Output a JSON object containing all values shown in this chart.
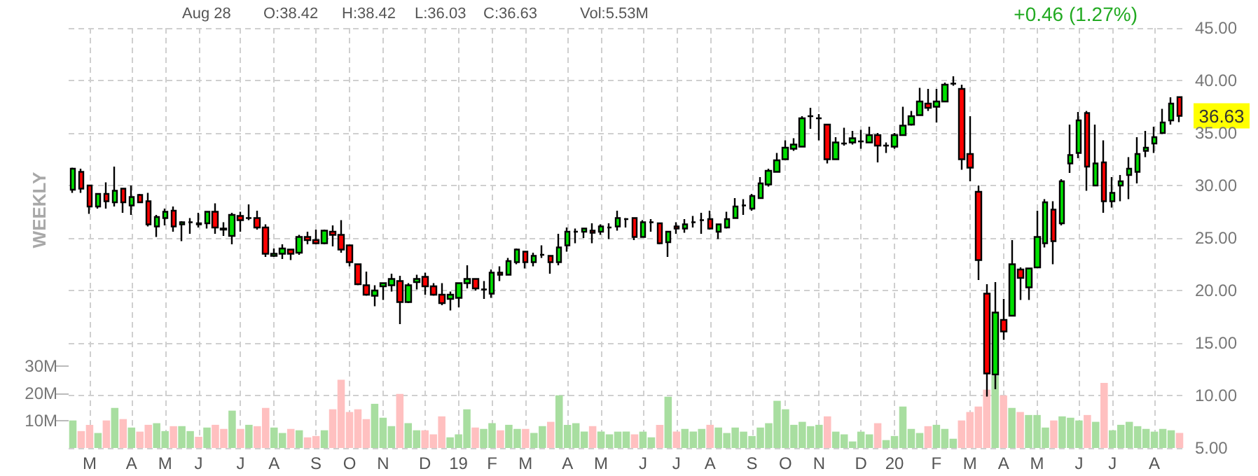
{
  "chart_data": {
    "type": "candlestick",
    "annotations": [
      "Aug 28",
      "O:38.42",
      "H:38.42",
      "L:36.03",
      "C:36.63",
      "Vol:5.53M",
      "+0.46 (1.27%)",
      "36.63",
      "WEEKLY"
    ],
    "categories": [
      null,
      null,
      "M",
      null,
      null,
      null,
      null,
      "A",
      null,
      null,
      null,
      "M",
      null,
      null,
      null,
      "J",
      null,
      null,
      null,
      null,
      "J",
      null,
      null,
      null,
      "A",
      null,
      null,
      null,
      null,
      "S",
      null,
      null,
      null,
      "O",
      null,
      null,
      null,
      "N",
      null,
      null,
      null,
      null,
      "D",
      null,
      null,
      null,
      "19",
      null,
      null,
      null,
      "F",
      null,
      null,
      null,
      "M",
      null,
      null,
      null,
      null,
      "A",
      null,
      null,
      null,
      "M",
      null,
      null,
      null,
      null,
      "J",
      null,
      null,
      null,
      "J",
      null,
      null,
      null,
      "A",
      null,
      null,
      null,
      null,
      "S",
      null,
      null,
      null,
      "O",
      null,
      null,
      null,
      "N",
      null,
      null,
      null,
      null,
      "D",
      null,
      null,
      null,
      "20",
      null,
      null,
      null,
      null,
      "F",
      null,
      null,
      null,
      "M",
      null,
      null,
      null,
      "A",
      null,
      null,
      null,
      "M",
      null,
      null,
      null,
      null,
      "J",
      null,
      null,
      null,
      "J",
      null,
      null,
      null,
      null,
      "A",
      null,
      null,
      null
    ],
    "series": [
      {
        "ohlc": [
          [
            29.6,
            31.7,
            29.3,
            31.6
          ],
          [
            31.3,
            31.6,
            29.3,
            29.7
          ],
          [
            30.0,
            30.0,
            27.3,
            28.0
          ],
          [
            28.0,
            29.2,
            27.8,
            29.2
          ],
          [
            29.2,
            30.3,
            27.8,
            28.5
          ],
          [
            28.4,
            31.8,
            28.0,
            29.5
          ],
          [
            29.7,
            29.7,
            27.4,
            28.4
          ],
          [
            28.1,
            30.0,
            27.2,
            28.9
          ],
          [
            29.1,
            29.2,
            28.4,
            28.4
          ],
          [
            28.5,
            29.3,
            26.1,
            26.3
          ],
          [
            26.1,
            27.2,
            25.1,
            27.0
          ],
          [
            26.9,
            27.8,
            26.2,
            27.5
          ],
          [
            27.6,
            28.0,
            25.6,
            26.1
          ],
          [
            26.3,
            26.6,
            24.7,
            26.5
          ],
          [
            26.5,
            26.9,
            25.4,
            26.5
          ],
          [
            26.4,
            27.4,
            26.0,
            26.3
          ],
          [
            26.4,
            27.5,
            25.9,
            27.5
          ],
          [
            27.5,
            28.3,
            25.4,
            26.0
          ],
          [
            25.9,
            26.5,
            25.2,
            25.8
          ],
          [
            25.2,
            27.4,
            24.4,
            27.2
          ],
          [
            27.1,
            27.5,
            25.6,
            26.7
          ],
          [
            26.9,
            28.2,
            26.7,
            26.9
          ],
          [
            26.9,
            27.6,
            25.8,
            26.0
          ],
          [
            26.0,
            26.3,
            23.2,
            23.5
          ],
          [
            23.3,
            24.0,
            23.2,
            23.5
          ],
          [
            23.5,
            24.4,
            23.0,
            24.0
          ],
          [
            23.9,
            23.9,
            22.9,
            23.5
          ],
          [
            23.6,
            25.3,
            23.4,
            25.1
          ],
          [
            25.1,
            25.6,
            24.4,
            24.8
          ],
          [
            24.8,
            25.8,
            24.4,
            24.5
          ],
          [
            24.5,
            25.8,
            24.4,
            25.7
          ],
          [
            25.6,
            26.2,
            24.2,
            25.3
          ],
          [
            25.3,
            26.7,
            23.6,
            23.9
          ],
          [
            24.3,
            24.3,
            22.3,
            22.7
          ],
          [
            22.5,
            22.5,
            20.5,
            20.6
          ],
          [
            20.5,
            21.8,
            19.5,
            19.6
          ],
          [
            19.5,
            20.5,
            18.5,
            20.0
          ],
          [
            20.4,
            20.7,
            19.1,
            20.7
          ],
          [
            20.5,
            21.6,
            19.9,
            21.1
          ],
          [
            20.9,
            21.4,
            16.8,
            18.9
          ],
          [
            18.9,
            20.7,
            18.8,
            20.5
          ],
          [
            20.8,
            21.5,
            20.1,
            21.1
          ],
          [
            21.3,
            21.7,
            19.6,
            20.4
          ],
          [
            20.4,
            20.7,
            19.5,
            19.6
          ],
          [
            19.6,
            20.7,
            18.6,
            18.8
          ],
          [
            19.2,
            19.9,
            18.1,
            19.6
          ],
          [
            19.3,
            20.7,
            18.4,
            20.7
          ],
          [
            20.7,
            22.4,
            20.2,
            21.1
          ],
          [
            21.1,
            21.1,
            20.0,
            20.2
          ],
          [
            20.1,
            20.9,
            19.2,
            20.1
          ],
          [
            19.7,
            22.0,
            19.3,
            21.7
          ],
          [
            21.7,
            22.3,
            20.9,
            21.5
          ],
          [
            21.5,
            23.1,
            21.5,
            22.8
          ],
          [
            22.7,
            24.0,
            22.5,
            23.9
          ],
          [
            23.7,
            23.7,
            22.1,
            22.7
          ],
          [
            22.7,
            23.6,
            22.3,
            23.3
          ],
          [
            23.4,
            24.3,
            23.1,
            23.4
          ],
          [
            23.3,
            23.3,
            21.6,
            22.7
          ],
          [
            22.7,
            25.4,
            22.4,
            24.1
          ],
          [
            24.3,
            26.0,
            23.7,
            25.6
          ],
          [
            25.6,
            25.9,
            24.5,
            25.6
          ],
          [
            25.6,
            25.9,
            25.0,
            25.9
          ],
          [
            25.7,
            26.4,
            24.5,
            25.5
          ],
          [
            25.6,
            26.3,
            25.3,
            26.1
          ],
          [
            26.0,
            26.4,
            24.9,
            26.0
          ],
          [
            26.1,
            27.6,
            25.7,
            26.9
          ],
          [
            26.8,
            26.9,
            26.0,
            26.8
          ],
          [
            26.9,
            26.9,
            24.8,
            25.1
          ],
          [
            25.1,
            26.7,
            25.1,
            26.5
          ],
          [
            26.5,
            26.8,
            25.6,
            26.5
          ],
          [
            26.4,
            26.4,
            24.4,
            24.5
          ],
          [
            24.6,
            25.6,
            23.2,
            25.6
          ],
          [
            26.1,
            26.5,
            25.4,
            25.9
          ],
          [
            25.9,
            26.8,
            25.5,
            26.3
          ],
          [
            26.5,
            27.1,
            26.0,
            26.5
          ],
          [
            26.7,
            27.4,
            25.4,
            26.7
          ],
          [
            26.8,
            27.6,
            25.8,
            25.9
          ],
          [
            25.6,
            26.3,
            24.9,
            26.3
          ],
          [
            26.0,
            27.5,
            25.9,
            26.8
          ],
          [
            26.9,
            28.8,
            26.9,
            28.0
          ],
          [
            28.1,
            28.7,
            27.2,
            28.1
          ],
          [
            27.8,
            29.2,
            27.6,
            29.0
          ],
          [
            28.8,
            30.8,
            28.8,
            30.2
          ],
          [
            30.1,
            31.6,
            29.9,
            31.4
          ],
          [
            31.3,
            33.1,
            31.3,
            32.4
          ],
          [
            32.5,
            34.3,
            32.5,
            33.6
          ],
          [
            33.5,
            34.5,
            33.3,
            33.9
          ],
          [
            33.7,
            36.6,
            33.7,
            36.4
          ],
          [
            36.6,
            37.4,
            35.4,
            36.6
          ],
          [
            36.4,
            36.8,
            34.3,
            36.4
          ],
          [
            35.8,
            35.8,
            32.1,
            32.5
          ],
          [
            32.5,
            34.6,
            32.5,
            34.1
          ],
          [
            34.0,
            35.5,
            33.8,
            34.0
          ],
          [
            34.1,
            35.2,
            33.9,
            34.5
          ],
          [
            34.2,
            35.3,
            33.5,
            34.2
          ],
          [
            34.1,
            35.6,
            34.1,
            34.8
          ],
          [
            34.8,
            35.0,
            32.2,
            33.8
          ],
          [
            33.8,
            34.1,
            33.1,
            33.8
          ],
          [
            33.7,
            35.0,
            33.5,
            34.8
          ],
          [
            34.8,
            37.5,
            34.8,
            35.7
          ],
          [
            35.8,
            37.1,
            35.7,
            36.6
          ],
          [
            36.7,
            39.3,
            36.7,
            38.0
          ],
          [
            37.8,
            39.2,
            37.1,
            37.4
          ],
          [
            37.5,
            39.2,
            36.0,
            38.0
          ],
          [
            38.0,
            39.8,
            38.0,
            39.6
          ],
          [
            39.7,
            40.4,
            39.5,
            39.7
          ],
          [
            39.2,
            39.6,
            31.5,
            32.5
          ],
          [
            33.0,
            36.6,
            30.4,
            31.7
          ],
          [
            29.4,
            30.0,
            21.0,
            22.9
          ],
          [
            19.7,
            20.6,
            9.9,
            12.1
          ],
          [
            12.0,
            20.8,
            10.6,
            17.9
          ],
          [
            17.2,
            19.2,
            15.3,
            16.1
          ],
          [
            17.6,
            24.8,
            17.6,
            22.5
          ],
          [
            22.0,
            22.2,
            19.1,
            21.2
          ],
          [
            20.3,
            22.1,
            19.1,
            22.1
          ],
          [
            22.2,
            27.6,
            22.2,
            25.1
          ],
          [
            24.5,
            28.7,
            24.1,
            28.4
          ],
          [
            27.7,
            28.5,
            22.5,
            24.7
          ],
          [
            26.4,
            30.6,
            26.2,
            30.4
          ],
          [
            32.1,
            35.8,
            31.2,
            32.9
          ],
          [
            33.1,
            37.0,
            32.6,
            36.2
          ],
          [
            36.9,
            37.1,
            29.5,
            31.8
          ],
          [
            30.0,
            35.8,
            30.0,
            32.1
          ],
          [
            32.2,
            34.3,
            27.4,
            28.5
          ],
          [
            28.5,
            30.8,
            27.9,
            29.3
          ],
          [
            30.0,
            31.0,
            28.5,
            30.4
          ],
          [
            31.0,
            32.7,
            28.7,
            31.6
          ],
          [
            31.3,
            34.6,
            30.2,
            33.0
          ],
          [
            33.3,
            35.2,
            32.7,
            33.6
          ],
          [
            34.0,
            35.6,
            33.1,
            34.6
          ],
          [
            35.0,
            37.3,
            34.9,
            36.0
          ],
          [
            36.2,
            38.4,
            35.8,
            37.8
          ],
          [
            38.42,
            38.42,
            36.03,
            36.63
          ]
        ],
        "colors": [
          "#00e000",
          "#ff0000",
          "#ff0000",
          "#00e000",
          "#ff0000",
          "#00e000",
          "#ff0000",
          "#00e000",
          "#ff0000",
          "#ff0000",
          "#00e000",
          "#00e000",
          "#ff0000",
          "#00e000",
          "#000000",
          "#ff0000",
          "#00e000",
          "#ff0000",
          "#ff0000",
          "#00e000",
          "#ff0000",
          "#000000",
          "#ff0000",
          "#ff0000",
          "#00e000",
          "#00e000",
          "#ff0000",
          "#00e000",
          "#ff0000",
          "#ff0000",
          "#00e000",
          "#ff0000",
          "#ff0000",
          "#ff0000",
          "#ff0000",
          "#ff0000",
          "#00e000",
          "#00e000",
          "#00e000",
          "#ff0000",
          "#00e000",
          "#00e000",
          "#ff0000",
          "#ff0000",
          "#ff0000",
          "#00e000",
          "#00e000",
          "#00e000",
          "#ff0000",
          "#000000",
          "#00e000",
          "#ff0000",
          "#00e000",
          "#00e000",
          "#ff0000",
          "#00e000",
          "#000000",
          "#ff0000",
          "#00e000",
          "#00e000",
          "#000000",
          "#00e000",
          "#ff0000",
          "#00e000",
          "#000000",
          "#00e000",
          "#000000",
          "#ff0000",
          "#00e000",
          "#000000",
          "#ff0000",
          "#00e000",
          "#ff0000",
          "#00e000",
          "#000000",
          "#000000",
          "#ff0000",
          "#00e000",
          "#00e000",
          "#00e000",
          "#000000",
          "#00e000",
          "#00e000",
          "#00e000",
          "#00e000",
          "#00e000",
          "#00e000",
          "#00e000",
          "#000000",
          "#000000",
          "#ff0000",
          "#00e000",
          "#000000",
          "#00e000",
          "#000000",
          "#00e000",
          "#ff0000",
          "#000000",
          "#00e000",
          "#00e000",
          "#00e000",
          "#00e000",
          "#ff0000",
          "#00e000",
          "#00e000",
          "#000000",
          "#ff0000",
          "#ff0000",
          "#ff0000",
          "#ff0000",
          "#00e000",
          "#ff0000",
          "#00e000",
          "#ff0000",
          "#00e000",
          "#00e000",
          "#00e000",
          "#ff0000",
          "#00e000",
          "#00e000",
          "#00e000",
          "#ff0000",
          "#00e000",
          "#ff0000",
          "#00e000",
          "#00e000",
          "#00e000",
          "#00e000",
          "#00e000",
          "#00e000",
          "#00e000",
          "#00e000",
          "#ff0000"
        ]
      },
      {
        "type": "bar",
        "axis": "y2",
        "values": [
          10.1,
          6.2,
          8.5,
          5.5,
          10.1,
          14.7,
          10.6,
          7.5,
          6.0,
          8.5,
          9.1,
          6.2,
          8.0,
          8.0,
          6.2,
          4.1,
          7.5,
          8.5,
          7.0,
          13.7,
          7.0,
          8.5,
          8.0,
          14.7,
          7.5,
          5.5,
          7.0,
          6.5,
          3.9,
          4.4,
          6.5,
          14.2,
          25.0,
          13.2,
          14.2,
          10.6,
          16.2,
          11.1,
          8.0,
          19.8,
          9.1,
          6.5,
          6.5,
          5.0,
          11.6,
          3.9,
          5.0,
          14.2,
          7.5,
          7.0,
          9.1,
          6.5,
          8.5,
          7.0,
          7.0,
          5.5,
          8.0,
          9.6,
          19.3,
          8.5,
          9.1,
          6.0,
          8.0,
          6.0,
          5.0,
          6.0,
          6.0,
          5.0,
          6.0,
          3.9,
          8.5,
          18.8,
          6.0,
          7.0,
          6.0,
          7.0,
          8.5,
          7.5,
          5.5,
          7.5,
          6.0,
          4.4,
          7.5,
          9.1,
          17.3,
          14.2,
          8.5,
          9.6,
          8.0,
          8.5,
          11.6,
          6.0,
          5.0,
          2.4,
          6.0,
          5.0,
          9.1,
          2.9,
          4.4,
          15.2,
          7.0,
          5.5,
          8.0,
          8.5,
          7.0,
          3.4,
          10.1,
          13.2,
          15.2,
          21.4,
          26.5,
          19.3,
          14.7,
          13.2,
          12.1,
          12.1,
          7.5,
          10.1,
          11.6,
          11.1,
          10.1,
          12.1,
          9.6,
          23.9,
          6.5,
          8.5,
          9.6,
          8.0,
          7.0,
          6.0,
          7.0,
          6.5,
          5.53
        ],
        "colors": [
          "#a8dea0",
          "#ffc0c0",
          "#ffc0c0",
          "#a8dea0",
          "#ffc0c0",
          "#a8dea0",
          "#ffc0c0",
          "#a8dea0",
          "#ffc0c0",
          "#ffc0c0",
          "#a8dea0",
          "#a8dea0",
          "#ffc0c0",
          "#a8dea0",
          "#a8dea0",
          "#ffc0c0",
          "#a8dea0",
          "#ffc0c0",
          "#ffc0c0",
          "#a8dea0",
          "#ffc0c0",
          "#a8dea0",
          "#ffc0c0",
          "#ffc0c0",
          "#a8dea0",
          "#a8dea0",
          "#ffc0c0",
          "#a8dea0",
          "#ffc0c0",
          "#ffc0c0",
          "#a8dea0",
          "#ffc0c0",
          "#ffc0c0",
          "#ffc0c0",
          "#ffc0c0",
          "#ffc0c0",
          "#a8dea0",
          "#a8dea0",
          "#a8dea0",
          "#ffc0c0",
          "#a8dea0",
          "#a8dea0",
          "#ffc0c0",
          "#ffc0c0",
          "#ffc0c0",
          "#a8dea0",
          "#a8dea0",
          "#a8dea0",
          "#ffc0c0",
          "#a8dea0",
          "#a8dea0",
          "#ffc0c0",
          "#a8dea0",
          "#a8dea0",
          "#ffc0c0",
          "#a8dea0",
          "#a8dea0",
          "#ffc0c0",
          "#a8dea0",
          "#a8dea0",
          "#a8dea0",
          "#a8dea0",
          "#ffc0c0",
          "#a8dea0",
          "#a8dea0",
          "#a8dea0",
          "#a8dea0",
          "#ffc0c0",
          "#a8dea0",
          "#a8dea0",
          "#ffc0c0",
          "#a8dea0",
          "#ffc0c0",
          "#a8dea0",
          "#a8dea0",
          "#a8dea0",
          "#ffc0c0",
          "#a8dea0",
          "#a8dea0",
          "#a8dea0",
          "#a8dea0",
          "#a8dea0",
          "#a8dea0",
          "#a8dea0",
          "#a8dea0",
          "#a8dea0",
          "#a8dea0",
          "#a8dea0",
          "#a8dea0",
          "#a8dea0",
          "#ffc0c0",
          "#a8dea0",
          "#a8dea0",
          "#a8dea0",
          "#a8dea0",
          "#a8dea0",
          "#ffc0c0",
          "#a8dea0",
          "#a8dea0",
          "#a8dea0",
          "#a8dea0",
          "#a8dea0",
          "#ffc0c0",
          "#a8dea0",
          "#a8dea0",
          "#a8dea0",
          "#ffc0c0",
          "#ffc0c0",
          "#ffc0c0",
          "#ffc0c0",
          "#a8dea0",
          "#ffc0c0",
          "#a8dea0",
          "#ffc0c0",
          "#a8dea0",
          "#a8dea0",
          "#a8dea0",
          "#ffc0c0",
          "#a8dea0",
          "#a8dea0",
          "#a8dea0",
          "#ffc0c0",
          "#a8dea0",
          "#ffc0c0",
          "#a8dea0",
          "#a8dea0",
          "#a8dea0",
          "#a8dea0",
          "#a8dea0",
          "#a8dea0",
          "#a8dea0",
          "#a8dea0",
          "#ffc0c0"
        ]
      }
    ],
    "ylim": [
      5,
      45
    ],
    "yticks": [
      {
        "value": 5,
        "label": "5.00"
      },
      {
        "value": 10,
        "label": "10.00"
      },
      {
        "value": 15,
        "label": "15.00"
      },
      {
        "value": 20,
        "label": "20.00"
      },
      {
        "value": 25,
        "label": "25.00"
      },
      {
        "value": 30,
        "label": "30.00"
      },
      {
        "value": 35,
        "label": "35.00"
      },
      {
        "value": 40,
        "label": "40.00"
      },
      {
        "value": 45,
        "label": "45.00"
      }
    ],
    "y2lim": [
      0,
      154
    ],
    "y2ticks": [
      {
        "value": 10,
        "label": "10M"
      },
      {
        "value": 20,
        "label": "20M"
      },
      {
        "value": 30,
        "label": "30M"
      }
    ],
    "grid": true
  }
}
